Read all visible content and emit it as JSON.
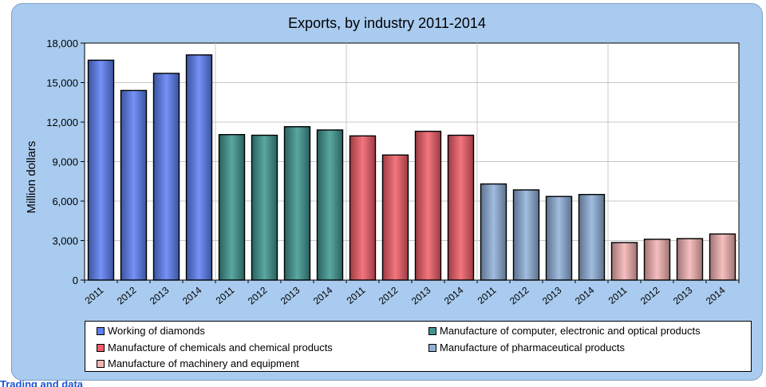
{
  "chart_data": {
    "type": "bar",
    "title": "Exports, by industry 2011-2014",
    "ylabel": "Million dollars",
    "ylim": [
      0,
      18000
    ],
    "yticks": [
      "0",
      "3,000",
      "6,000",
      "9,000",
      "12,000",
      "15,000",
      "18,000"
    ],
    "ytick_values": [
      0,
      3000,
      6000,
      9000,
      12000,
      15000,
      18000
    ],
    "grid": true,
    "legend_position": "bottom",
    "series": [
      {
        "name": "Working of diamonds",
        "color": "#5b7ff5",
        "categories": [
          "2011",
          "2012",
          "2013",
          "2014"
        ],
        "values": [
          16700,
          14400,
          15700,
          17100
        ]
      },
      {
        "name": "Manufacture of computer, electronic and optical products",
        "color": "#3e9690",
        "categories": [
          "2011",
          "2012",
          "2013",
          "2014"
        ],
        "values": [
          11050,
          11000,
          11650,
          11400
        ]
      },
      {
        "name": "Manufacture of chemicals and chemical products",
        "color": "#f15d67",
        "categories": [
          "2011",
          "2012",
          "2013",
          "2014"
        ],
        "values": [
          10950,
          9500,
          11300,
          11000
        ]
      },
      {
        "name": "Manufacture of  pharmaceutical products",
        "color": "#8fb0d9",
        "categories": [
          "2011",
          "2012",
          "2013",
          "2014"
        ],
        "values": [
          7300,
          6850,
          6350,
          6500
        ]
      },
      {
        "name": "Manufacture of machinery and equipment",
        "color": "#f5b3b3",
        "categories": [
          "2011",
          "2012",
          "2013",
          "2014"
        ],
        "values": [
          2850,
          3100,
          3150,
          3500
        ]
      }
    ]
  },
  "footer": {
    "link_text": "Trading and data"
  }
}
